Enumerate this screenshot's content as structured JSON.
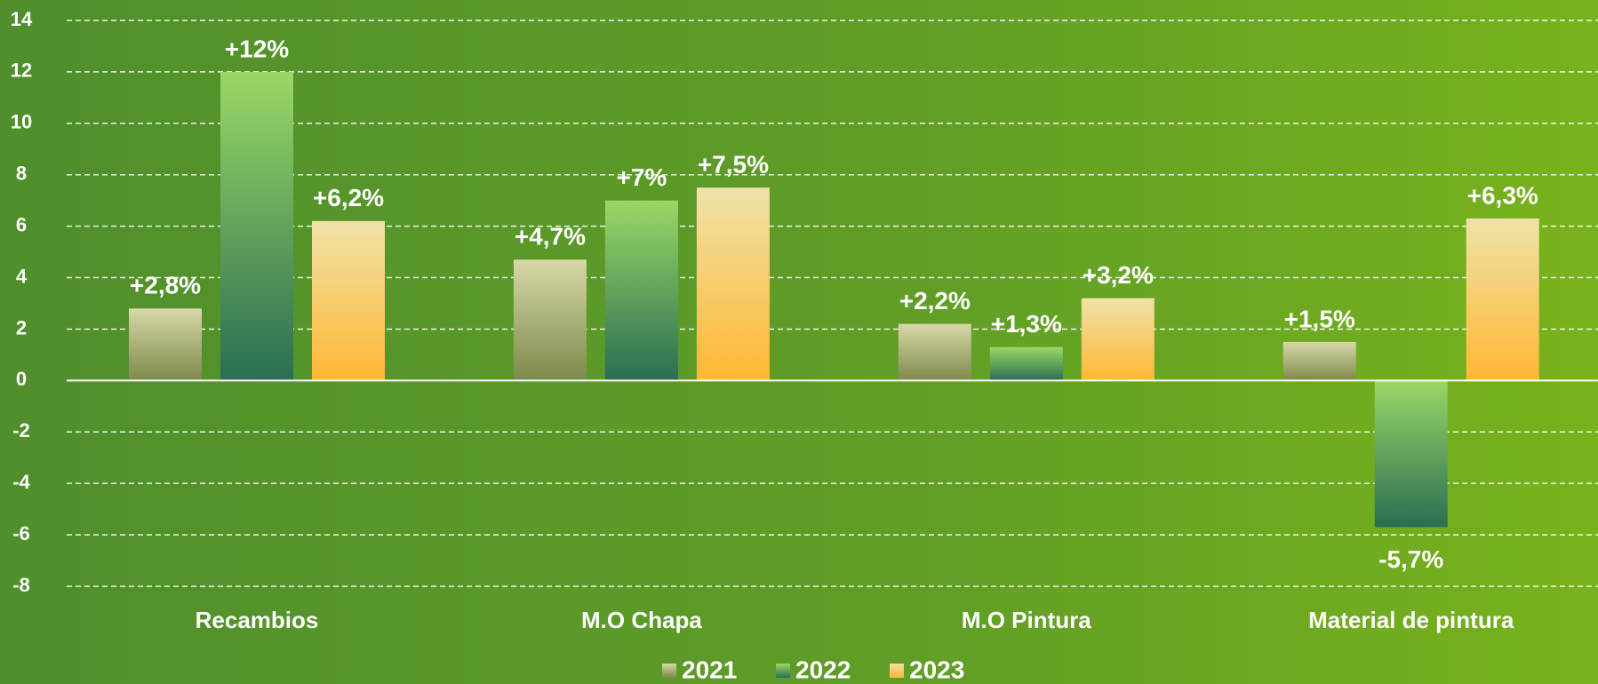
{
  "chart_data": {
    "type": "bar",
    "categories": [
      "Recambios",
      "M.O Chapa",
      "M.O Pintura",
      "Material de pintura"
    ],
    "series": [
      {
        "name": "2021",
        "color": "#7d8a4a",
        "values": [
          2.8,
          4.7,
          2.2,
          1.5
        ],
        "value_labels": [
          "+2,8%",
          "+4,7%",
          "+2,2%",
          "+1,5%"
        ]
      },
      {
        "name": "2022",
        "color": "#2a6e52",
        "values": [
          12,
          7,
          1.3,
          -5.7
        ],
        "value_labels": [
          "+12%",
          "+7%",
          "+1,3%",
          "-5,7%"
        ]
      },
      {
        "name": "2023",
        "color": "#ffb733",
        "values": [
          6.2,
          7.5,
          3.2,
          6.3
        ],
        "value_labels": [
          "+6,2%",
          "+7,5%",
          "+3,2%",
          "+6,3%"
        ]
      }
    ],
    "ylim": [
      -8,
      14
    ],
    "yticks": [
      -8,
      -6,
      -4,
      -2,
      0,
      2,
      4,
      6,
      8,
      10,
      12,
      14
    ],
    "grid": true
  }
}
